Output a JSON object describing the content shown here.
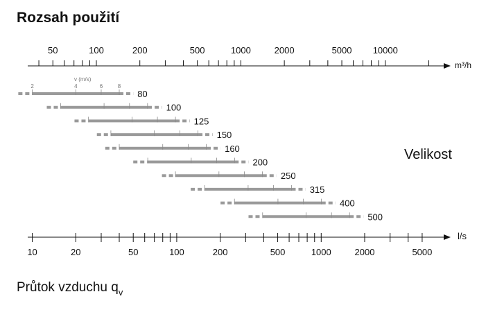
{
  "chart_data": {
    "type": "range",
    "title": "Rozsah použití",
    "x_label": "Průtok vzduchu q",
    "x_label_sub": "v",
    "legend_title": "Velikost",
    "x2_unit": "m³/h",
    "x2lim": [
      33.5,
      27700
    ],
    "x2ticks": [
      50,
      100,
      200,
      500,
      1000,
      2000,
      5000,
      10000
    ],
    "x2_minor_ticks": [
      40,
      60,
      70,
      80,
      90,
      300,
      400,
      600,
      700,
      800,
      900,
      3000,
      4000,
      6000,
      7000,
      8000,
      9000,
      20000
    ],
    "x_unit": "l/s",
    "xlim": [
      9.3,
      7700
    ],
    "xticks": [
      10,
      20,
      50,
      100,
      200,
      500,
      1000,
      2000,
      5000
    ],
    "x_minor_ticks": [
      30,
      40,
      60,
      70,
      80,
      90,
      300,
      400,
      600,
      700,
      800,
      900,
      3000,
      4000
    ],
    "velocity_label": "v (m/s)",
    "velocity_ticks": [
      2,
      4,
      6,
      8
    ],
    "color": "#9a9a9a",
    "rows": [
      {
        "name": 80,
        "values": [
          8,
          10,
          40,
          50
        ]
      },
      {
        "name": 100,
        "values": [
          12.6,
          15.7,
          63,
          79
        ]
      },
      {
        "name": 125,
        "values": [
          19.6,
          24.5,
          98,
          123
        ]
      },
      {
        "name": 150,
        "values": [
          28,
          35,
          141,
          177
        ]
      },
      {
        "name": 160,
        "values": [
          32,
          40,
          161,
          201
        ]
      },
      {
        "name": 200,
        "values": [
          50,
          63,
          251,
          314
        ]
      },
      {
        "name": 250,
        "values": [
          79,
          98,
          393,
          491
        ]
      },
      {
        "name": 315,
        "values": [
          125,
          156,
          623,
          779
        ]
      },
      {
        "name": 400,
        "values": [
          201,
          251,
          1005,
          1257
        ]
      },
      {
        "name": 500,
        "values": [
          314,
          393,
          1571,
          1963
        ]
      }
    ]
  }
}
